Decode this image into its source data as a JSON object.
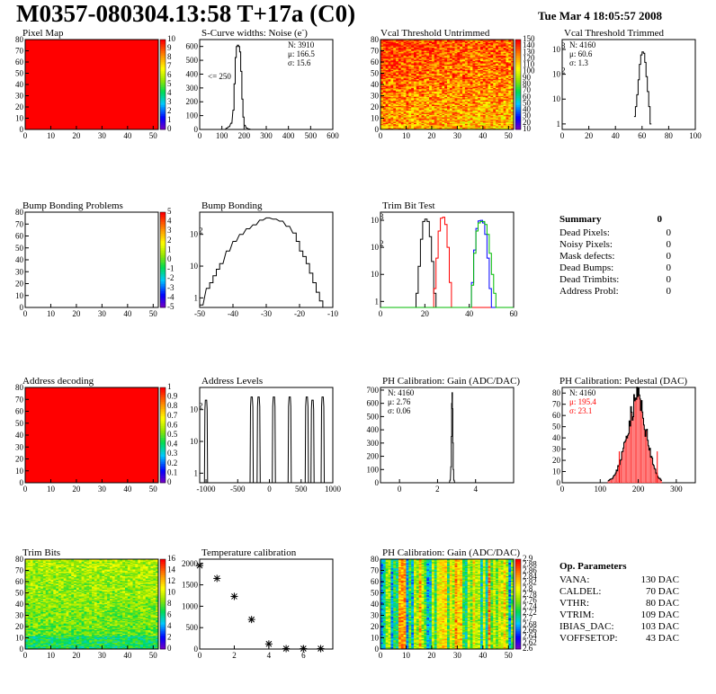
{
  "header": {
    "title": "M0357-080304.13:58 T+17a (C0)",
    "date": "Tue Mar  4 18:05:57 2008"
  },
  "colors": {
    "axis": "#000000",
    "hist_fill": "#ff0000",
    "trim_series": [
      "#000000",
      "#ff0000",
      "#0000ff",
      "#00bb00"
    ]
  },
  "panels": {
    "pixel_map": {
      "title": "Pixel Map",
      "x_ticks": [
        "0",
        "10",
        "20",
        "30",
        "40",
        "50"
      ],
      "y_ticks": [
        "0",
        "10",
        "20",
        "30",
        "40",
        "50",
        "60",
        "70",
        "80"
      ],
      "z_ticks": [
        "0",
        "1",
        "2",
        "3",
        "4",
        "5",
        "6",
        "7",
        "8",
        "9",
        "10"
      ],
      "fill": "uniform"
    },
    "scurve": {
      "title": "S-Curve widths: Noise (e",
      "title_sup": "-",
      "title_end": ")",
      "x_ticks": [
        "0",
        "100",
        "200",
        "300",
        "400",
        "500",
        "600"
      ],
      "y_ticks": [
        "0",
        "100",
        "200",
        "300",
        "400",
        "500",
        "600"
      ],
      "stats": [
        "N: 3910",
        "μ: 166.5",
        "σ: 15.6"
      ],
      "annotation": "<= 250"
    },
    "vcal_untrimmed": {
      "title": "Vcal Threshold Untrimmed",
      "x_ticks": [
        "0",
        "10",
        "20",
        "30",
        "40",
        "50"
      ],
      "y_ticks": [
        "0",
        "10",
        "20",
        "30",
        "40",
        "50",
        "60",
        "70",
        "80"
      ],
      "z_ticks": [
        "10",
        "20",
        "30",
        "40",
        "50",
        "60",
        "70",
        "80",
        "90",
        "100",
        "110",
        "120",
        "130",
        "140",
        "150"
      ]
    },
    "vcal_trimmed": {
      "title": "Vcal Threshold Trimmed",
      "x_ticks": [
        "0",
        "20",
        "40",
        "60",
        "80",
        "100"
      ],
      "y_ticks": [
        "1",
        "10",
        "10",
        "10"
      ],
      "y_exps": [
        "",
        "",
        "2",
        "3"
      ],
      "stats": [
        "N: 4160",
        "μ: 60.6",
        "σ:  1.3"
      ]
    },
    "bump_problems": {
      "title": "Bump Bonding Problems",
      "x_ticks": [
        "0",
        "10",
        "20",
        "30",
        "40",
        "50"
      ],
      "y_ticks": [
        "0",
        "10",
        "20",
        "30",
        "40",
        "50",
        "60",
        "70",
        "80"
      ],
      "z_ticks": [
        "-5",
        "-4",
        "-3",
        "-2",
        "-1",
        "0",
        "1",
        "2",
        "3",
        "4",
        "5"
      ]
    },
    "bump_bonding": {
      "title": "Bump Bonding",
      "x_ticks": [
        "-50",
        "-40",
        "-30",
        "-20",
        "-10"
      ],
      "y_ticks": [
        "1",
        "10",
        "10"
      ],
      "y_exps": [
        "",
        "",
        "2"
      ]
    },
    "trim_bit": {
      "title": "Trim Bit Test",
      "x_ticks": [
        "0",
        "20",
        "40",
        "60"
      ],
      "y_ticks": [
        "1",
        "10",
        "10",
        "10"
      ],
      "y_exps": [
        "",
        "",
        "2",
        "3"
      ]
    },
    "summary": {
      "title": "Summary",
      "total": "0",
      "rows": [
        {
          "label": "Dead Pixels:",
          "value": "0"
        },
        {
          "label": "Noisy Pixels:",
          "value": "0"
        },
        {
          "label": "Mask defects:",
          "value": "0"
        },
        {
          "label": "Dead Bumps:",
          "value": "0"
        },
        {
          "label": "Dead Trimbits:",
          "value": "0"
        },
        {
          "label": "Address Probl:",
          "value": "0"
        }
      ]
    },
    "address_decoding": {
      "title": "Address decoding",
      "x_ticks": [
        "0",
        "10",
        "20",
        "30",
        "40",
        "50"
      ],
      "y_ticks": [
        "0",
        "10",
        "20",
        "30",
        "40",
        "50",
        "60",
        "70",
        "80"
      ],
      "z_ticks": [
        "0",
        "0.1",
        "0.2",
        "0.3",
        "0.4",
        "0.5",
        "0.6",
        "0.7",
        "0.8",
        "0.9",
        "1"
      ]
    },
    "address_levels": {
      "title": "Address Levels",
      "x_ticks": [
        "-1000",
        "-500",
        "0",
        "500",
        "1000"
      ],
      "y_ticks": [
        "1",
        "10",
        "10"
      ],
      "y_exps": [
        "",
        "",
        "2"
      ]
    },
    "ph_gain": {
      "title": "PH Calibration: Gain (ADC/DAC)",
      "x_ticks": [
        "0",
        "2",
        "4"
      ],
      "y_ticks": [
        "0",
        "100",
        "200",
        "300",
        "400",
        "500",
        "600",
        "700"
      ],
      "stats": [
        "N: 4160",
        "μ: 2.76",
        "σ: 0.06"
      ]
    },
    "ph_pedestal": {
      "title": "PH Calibration: Pedestal (DAC)",
      "x_ticks": [
        "0",
        "100",
        "200",
        "300"
      ],
      "y_ticks": [
        "0",
        "10",
        "20",
        "30",
        "40",
        "50",
        "60",
        "70",
        "80"
      ],
      "stats": [
        "N: 4160",
        "μ: 195.4",
        "σ: 23.1"
      ]
    },
    "trim_bits": {
      "title": "Trim Bits",
      "x_ticks": [
        "0",
        "10",
        "20",
        "30",
        "40",
        "50"
      ],
      "y_ticks": [
        "0",
        "10",
        "20",
        "30",
        "40",
        "50",
        "60",
        "70",
        "80"
      ],
      "z_ticks": [
        "0",
        "2",
        "4",
        "6",
        "8",
        "10",
        "12",
        "14",
        "16"
      ]
    },
    "temperature": {
      "title": "Temperature calibration",
      "x_ticks": [
        "0",
        "2",
        "4",
        "6"
      ],
      "y_ticks": [
        "0",
        "500",
        "1000",
        "1500",
        "2000"
      ]
    },
    "ph_gain_map": {
      "title": "PH Calibration: Gain (ADC/DAC)",
      "x_ticks": [
        "0",
        "10",
        "20",
        "30",
        "40",
        "50"
      ],
      "y_ticks": [
        "0",
        "10",
        "20",
        "30",
        "40",
        "50",
        "60",
        "70",
        "80"
      ],
      "z_ticks": [
        "2.6",
        "2.62",
        "2.64",
        "2.66",
        "2.68",
        "2.7",
        "2.72",
        "2.74",
        "2.76",
        "2.78",
        "2.8",
        "2.82",
        "2.84",
        "2.86",
        "2.88",
        "2.9"
      ]
    },
    "op_params": {
      "title": "Op. Parameters",
      "rows": [
        {
          "label": "VANA:",
          "value": "130 DAC"
        },
        {
          "label": "CALDEL:",
          "value": "70 DAC"
        },
        {
          "label": "VTHR:",
          "value": "80 DAC"
        },
        {
          "label": "VTRIM:",
          "value": "109 DAC"
        },
        {
          "label": "IBIAS_DAC:",
          "value": "103 DAC"
        },
        {
          "label": "VOFFSETOP:",
          "value": "43 DAC"
        }
      ]
    }
  },
  "chart_data": [
    {
      "name": "Pixel Map",
      "type": "heatmap",
      "xlim": [
        0,
        52
      ],
      "ylim": [
        0,
        80
      ],
      "zlim": [
        0,
        10
      ],
      "uniform_value": 10
    },
    {
      "name": "S-Curve widths: Noise (e-)",
      "type": "bar",
      "xlim": [
        0,
        600
      ],
      "ylim": [
        0,
        650
      ],
      "x": [
        110,
        120,
        130,
        140,
        150,
        155,
        160,
        165,
        170,
        175,
        180,
        185,
        190,
        195,
        200,
        210,
        220,
        230
      ],
      "values": [
        0,
        10,
        20,
        45,
        140,
        330,
        520,
        600,
        610,
        600,
        560,
        420,
        220,
        90,
        30,
        10,
        3,
        0
      ]
    },
    {
      "name": "Vcal Threshold Untrimmed",
      "type": "heatmap",
      "xlim": [
        0,
        52
      ],
      "ylim": [
        0,
        80
      ],
      "zlim": [
        10,
        150
      ]
    },
    {
      "name": "Vcal Threshold Trimmed",
      "type": "bar",
      "log_y": true,
      "xlim": [
        0,
        100
      ],
      "ylim": [
        0.6,
        2500
      ],
      "x": [
        54,
        55,
        56,
        57,
        58,
        59,
        60,
        61,
        62,
        63,
        64,
        65,
        66
      ],
      "values": [
        2,
        5,
        15,
        60,
        250,
        600,
        800,
        700,
        300,
        80,
        20,
        5,
        1
      ]
    },
    {
      "name": "Bump Bonding Problems",
      "type": "heatmap",
      "xlim": [
        0,
        52
      ],
      "ylim": [
        0,
        80
      ],
      "zlim": [
        -5,
        5
      ],
      "empty": true
    },
    {
      "name": "Bump Bonding",
      "type": "bar",
      "log_y": true,
      "xlim": [
        -50,
        -10
      ],
      "ylim": [
        0.5,
        500
      ],
      "x": [
        -50,
        -48,
        -47,
        -46,
        -45,
        -44,
        -42,
        -40,
        -38,
        -36,
        -34,
        -32,
        -30,
        -28,
        -26,
        -24,
        -22,
        -21,
        -20,
        -19,
        -18,
        -17,
        -16,
        -15,
        -14,
        -13
      ],
      "values": [
        0.6,
        2,
        3,
        5,
        8,
        12,
        30,
        60,
        100,
        150,
        200,
        280,
        330,
        300,
        260,
        180,
        110,
        60,
        30,
        20,
        12,
        6,
        3,
        1.5,
        0.8,
        0.5
      ]
    },
    {
      "name": "Trim Bit Test",
      "type": "line",
      "log_y": true,
      "xlim": [
        0,
        60
      ],
      "ylim": [
        0.6,
        2000
      ],
      "series": [
        {
          "color": "#000000",
          "x": [
            15,
            16,
            17,
            18,
            19,
            20,
            21,
            22,
            23,
            24,
            25
          ],
          "values": [
            0.6,
            2,
            20,
            200,
            900,
            1100,
            900,
            250,
            30,
            2,
            0.6
          ]
        },
        {
          "color": "#ff0000",
          "x": [
            23,
            24,
            25,
            26,
            27,
            28,
            29,
            30,
            31,
            32
          ],
          "values": [
            0.6,
            3,
            40,
            400,
            1200,
            1300,
            700,
            100,
            5,
            0.6
          ]
        },
        {
          "color": "#0000ff",
          "x": [
            40,
            41,
            42,
            43,
            44,
            45,
            46,
            47,
            48,
            49,
            50
          ],
          "values": [
            0.6,
            5,
            80,
            500,
            950,
            1000,
            800,
            300,
            40,
            3,
            0.6
          ]
        },
        {
          "color": "#00bb00",
          "x": [
            40,
            41,
            42,
            43,
            44,
            45,
            46,
            47,
            48,
            49,
            50,
            51,
            52
          ],
          "values": [
            0.6,
            4,
            60,
            400,
            800,
            900,
            900,
            700,
            300,
            60,
            10,
            2,
            0.6
          ]
        }
      ]
    },
    {
      "name": "Address decoding",
      "type": "heatmap",
      "xlim": [
        0,
        52
      ],
      "ylim": [
        0,
        80
      ],
      "zlim": [
        0,
        1
      ],
      "uniform_value": 1
    },
    {
      "name": "Address Levels",
      "type": "bar",
      "log_y": true,
      "xlim": [
        -1100,
        1000
      ],
      "ylim": [
        0.5,
        500
      ],
      "peaks": [
        -1000,
        -280,
        -170,
        70,
        320,
        590,
        680,
        840
      ],
      "peak_heights": [
        200,
        250,
        250,
        250,
        250,
        250,
        200,
        250
      ]
    },
    {
      "name": "PH Calibration: Gain (ADC/DAC)",
      "type": "bar",
      "xlim": [
        -1,
        6
      ],
      "ylim": [
        0,
        720
      ],
      "x": [
        2.6,
        2.65,
        2.7,
        2.72,
        2.74,
        2.76,
        2.78,
        2.8,
        2.82,
        2.85,
        2.9
      ],
      "values": [
        0,
        20,
        120,
        350,
        600,
        680,
        560,
        300,
        100,
        20,
        0
      ]
    },
    {
      "name": "PH Calibration: Pedestal (DAC)",
      "type": "bar",
      "xlim": [
        0,
        350
      ],
      "ylim": [
        0,
        85
      ],
      "x": [
        120,
        130,
        140,
        150,
        160,
        170,
        180,
        190,
        195,
        200,
        205,
        210,
        220,
        230,
        240,
        250,
        260
      ],
      "values": [
        2,
        4,
        8,
        18,
        30,
        45,
        60,
        72,
        78,
        80,
        70,
        60,
        45,
        28,
        14,
        6,
        2
      ]
    },
    {
      "name": "Trim Bits",
      "type": "heatmap",
      "xlim": [
        0,
        52
      ],
      "ylim": [
        0,
        80
      ],
      "zlim": [
        0,
        16
      ]
    },
    {
      "name": "Temperature calibration",
      "type": "scatter",
      "xlim": [
        0,
        8
      ],
      "ylim": [
        0,
        2100
      ],
      "x": [
        0,
        1,
        2,
        3,
        4,
        5,
        6,
        7
      ],
      "values": [
        1950,
        1650,
        1230,
        690,
        120,
        10,
        10,
        10
      ]
    },
    {
      "name": "PH Calibration: Gain (ADC/DAC) map",
      "type": "heatmap",
      "xlim": [
        0,
        52
      ],
      "ylim": [
        0,
        80
      ],
      "zlim": [
        2.6,
        2.9
      ]
    }
  ]
}
